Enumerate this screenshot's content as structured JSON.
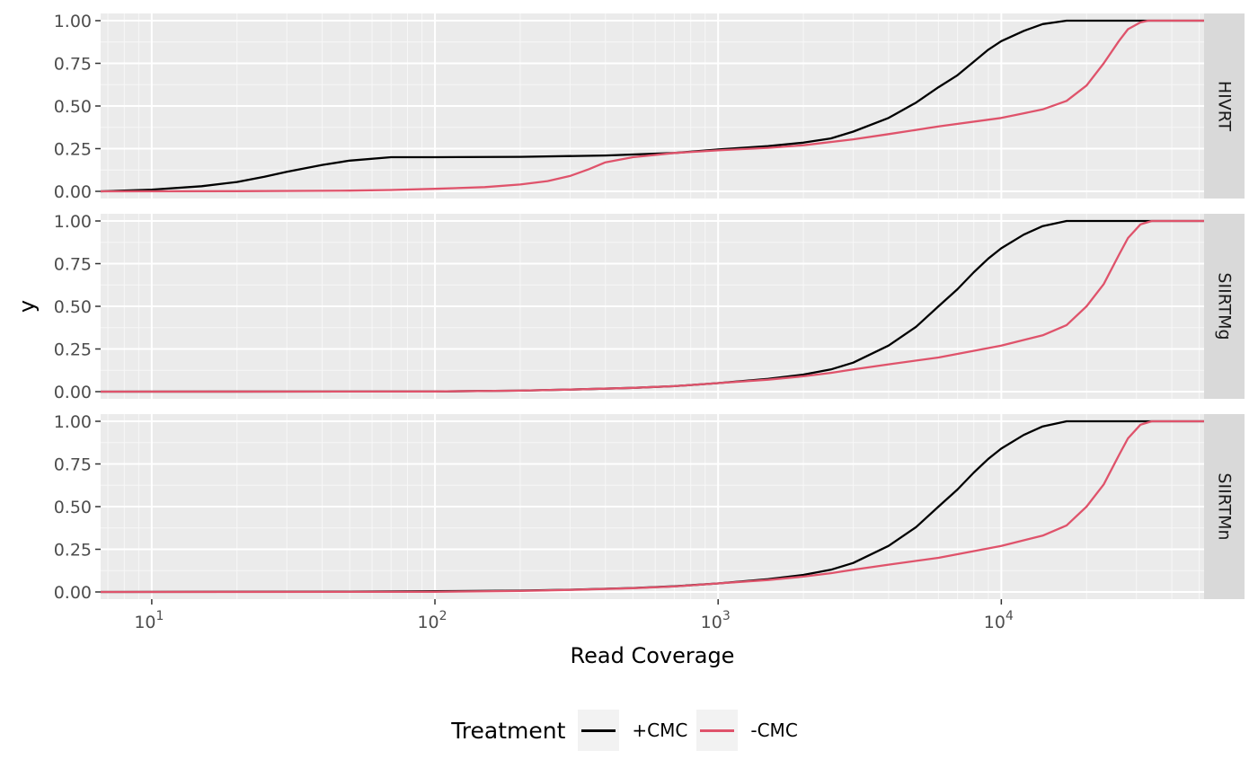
{
  "chart_data": {
    "type": "line",
    "xlabel": "Read Coverage",
    "ylabel": "y",
    "x_scale": "log10",
    "xlim": [
      6.6,
      52000
    ],
    "ylim": [
      0,
      1
    ],
    "x_ticks": [
      {
        "value": 10,
        "base": "10",
        "exp": "1"
      },
      {
        "value": 100,
        "base": "10",
        "exp": "2"
      },
      {
        "value": 1000,
        "base": "10",
        "exp": "3"
      },
      {
        "value": 10000,
        "base": "10",
        "exp": "4"
      }
    ],
    "y_ticks": [
      "0.00",
      "0.25",
      "0.50",
      "0.75",
      "1.00"
    ],
    "grid": true,
    "legend": {
      "title": "Treatment",
      "position": "bottom",
      "items": [
        {
          "label": "+CMC",
          "color": "#000000"
        },
        {
          "label": "-CMC",
          "color": "#df536b"
        }
      ]
    },
    "panels": [
      {
        "label": "HIVRT",
        "series": [
          {
            "name": "+CMC",
            "color": "#000000",
            "points": [
              [
                6.6,
                0
              ],
              [
                10,
                0.01
              ],
              [
                15,
                0.03
              ],
              [
                20,
                0.055
              ],
              [
                25,
                0.085
              ],
              [
                30,
                0.115
              ],
              [
                40,
                0.155
              ],
              [
                50,
                0.18
              ],
              [
                70,
                0.2
              ],
              [
                100,
                0.2
              ],
              [
                200,
                0.202
              ],
              [
                400,
                0.21
              ],
              [
                700,
                0.225
              ],
              [
                1000,
                0.245
              ],
              [
                1500,
                0.265
              ],
              [
                2000,
                0.285
              ],
              [
                2500,
                0.31
              ],
              [
                3000,
                0.35
              ],
              [
                4000,
                0.43
              ],
              [
                5000,
                0.52
              ],
              [
                6000,
                0.61
              ],
              [
                7000,
                0.68
              ],
              [
                8000,
                0.76
              ],
              [
                9000,
                0.83
              ],
              [
                10000,
                0.88
              ],
              [
                12000,
                0.94
              ],
              [
                14000,
                0.98
              ],
              [
                17000,
                1.0
              ],
              [
                30000,
                1.0
              ],
              [
                52000,
                1.0
              ]
            ]
          },
          {
            "name": "-CMC",
            "color": "#df536b",
            "points": [
              [
                6.6,
                0
              ],
              [
                20,
                0.001
              ],
              [
                50,
                0.004
              ],
              [
                70,
                0.008
              ],
              [
                100,
                0.015
              ],
              [
                150,
                0.025
              ],
              [
                200,
                0.04
              ],
              [
                250,
                0.06
              ],
              [
                300,
                0.09
              ],
              [
                350,
                0.13
              ],
              [
                400,
                0.17
              ],
              [
                500,
                0.2
              ],
              [
                700,
                0.225
              ],
              [
                1000,
                0.24
              ],
              [
                1500,
                0.255
              ],
              [
                2000,
                0.27
              ],
              [
                3000,
                0.305
              ],
              [
                4000,
                0.335
              ],
              [
                6000,
                0.38
              ],
              [
                10000,
                0.43
              ],
              [
                14000,
                0.48
              ],
              [
                17000,
                0.53
              ],
              [
                20000,
                0.62
              ],
              [
                23000,
                0.75
              ],
              [
                26000,
                0.88
              ],
              [
                28000,
                0.95
              ],
              [
                31000,
                0.99
              ],
              [
                33000,
                1.0
              ],
              [
                52000,
                1.0
              ]
            ]
          }
        ]
      },
      {
        "label": "SIIRTMg",
        "series": [
          {
            "name": "+CMC",
            "color": "#000000",
            "points": [
              [
                6.6,
                0
              ],
              [
                100,
                0.001
              ],
              [
                200,
                0.006
              ],
              [
                300,
                0.012
              ],
              [
                500,
                0.022
              ],
              [
                700,
                0.032
              ],
              [
                1000,
                0.05
              ],
              [
                1500,
                0.075
              ],
              [
                2000,
                0.1
              ],
              [
                2500,
                0.13
              ],
              [
                3000,
                0.17
              ],
              [
                4000,
                0.27
              ],
              [
                5000,
                0.38
              ],
              [
                6000,
                0.5
              ],
              [
                7000,
                0.6
              ],
              [
                8000,
                0.7
              ],
              [
                9000,
                0.78
              ],
              [
                10000,
                0.84
              ],
              [
                12000,
                0.92
              ],
              [
                14000,
                0.97
              ],
              [
                17000,
                1.0
              ],
              [
                30000,
                1.0
              ],
              [
                52000,
                1.0
              ]
            ]
          },
          {
            "name": "-CMC",
            "color": "#df536b",
            "points": [
              [
                6.6,
                0
              ],
              [
                100,
                0.001
              ],
              [
                200,
                0.006
              ],
              [
                300,
                0.012
              ],
              [
                500,
                0.022
              ],
              [
                700,
                0.032
              ],
              [
                1000,
                0.05
              ],
              [
                1500,
                0.07
              ],
              [
                2000,
                0.09
              ],
              [
                2500,
                0.11
              ],
              [
                3000,
                0.13
              ],
              [
                4000,
                0.16
              ],
              [
                6000,
                0.2
              ],
              [
                10000,
                0.27
              ],
              [
                14000,
                0.33
              ],
              [
                17000,
                0.39
              ],
              [
                20000,
                0.5
              ],
              [
                23000,
                0.63
              ],
              [
                26000,
                0.8
              ],
              [
                28000,
                0.9
              ],
              [
                31000,
                0.98
              ],
              [
                34000,
                1.0
              ],
              [
                52000,
                1.0
              ]
            ]
          }
        ]
      },
      {
        "label": "SIIRTMn",
        "series": [
          {
            "name": "+CMC",
            "color": "#000000",
            "points": [
              [
                6.6,
                0
              ],
              [
                50,
                0.002
              ],
              [
                100,
                0.004
              ],
              [
                200,
                0.008
              ],
              [
                300,
                0.013
              ],
              [
                500,
                0.023
              ],
              [
                700,
                0.033
              ],
              [
                1000,
                0.05
              ],
              [
                1500,
                0.075
              ],
              [
                2000,
                0.1
              ],
              [
                2500,
                0.13
              ],
              [
                3000,
                0.17
              ],
              [
                4000,
                0.27
              ],
              [
                5000,
                0.38
              ],
              [
                6000,
                0.5
              ],
              [
                7000,
                0.6
              ],
              [
                8000,
                0.7
              ],
              [
                9000,
                0.78
              ],
              [
                10000,
                0.84
              ],
              [
                12000,
                0.92
              ],
              [
                14000,
                0.97
              ],
              [
                17000,
                1.0
              ],
              [
                30000,
                1.0
              ],
              [
                52000,
                1.0
              ]
            ]
          },
          {
            "name": "-CMC",
            "color": "#df536b",
            "points": [
              [
                6.6,
                0
              ],
              [
                100,
                0.001
              ],
              [
                200,
                0.006
              ],
              [
                300,
                0.012
              ],
              [
                500,
                0.022
              ],
              [
                700,
                0.032
              ],
              [
                1000,
                0.05
              ],
              [
                1500,
                0.07
              ],
              [
                2000,
                0.09
              ],
              [
                2500,
                0.11
              ],
              [
                3000,
                0.13
              ],
              [
                4000,
                0.16
              ],
              [
                6000,
                0.2
              ],
              [
                10000,
                0.27
              ],
              [
                14000,
                0.33
              ],
              [
                17000,
                0.39
              ],
              [
                20000,
                0.5
              ],
              [
                23000,
                0.63
              ],
              [
                26000,
                0.8
              ],
              [
                28000,
                0.9
              ],
              [
                31000,
                0.98
              ],
              [
                34000,
                1.0
              ],
              [
                52000,
                1.0
              ]
            ]
          }
        ]
      }
    ]
  }
}
